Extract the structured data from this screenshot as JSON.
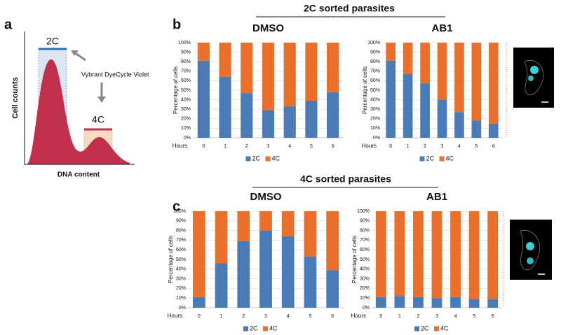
{
  "panel_labels": [
    "a",
    "b",
    "c"
  ],
  "histogram": {
    "y_label": "Cell counts",
    "x_label": "DNA content",
    "peak_labels": [
      "2C",
      "4C"
    ],
    "annotation": "Vybrant DyeCycle Violet"
  },
  "sections": [
    {
      "title": "2C sorted parasites"
    },
    {
      "title": "4C sorted parasites"
    }
  ],
  "chart_data": [
    {
      "type": "bar",
      "stacked": true,
      "title": "DMSO",
      "y_label": "Percentage of cells",
      "x_label": "Hours",
      "categories": [
        "0",
        "1",
        "2",
        "3",
        "4",
        "5",
        "6"
      ],
      "series": [
        {
          "name": "2C",
          "color": "#4a7bb7",
          "values": [
            81,
            64,
            47,
            29,
            33,
            39,
            48
          ]
        },
        {
          "name": "4C",
          "color": "#e8702a",
          "values": [
            19,
            36,
            53,
            71,
            67,
            61,
            52
          ]
        }
      ],
      "ylim": [
        0,
        100
      ],
      "yticks": [
        {
          "value": 0,
          "label": "0%"
        },
        {
          "value": 10,
          "label": "10%"
        },
        {
          "value": 20,
          "label": "20%"
        },
        {
          "value": 30,
          "label": "30%"
        },
        {
          "value": 40,
          "label": "40%"
        },
        {
          "value": 50,
          "label": "50%"
        },
        {
          "value": 60,
          "label": "60%"
        },
        {
          "value": 70,
          "label": "70%"
        },
        {
          "value": 80,
          "label": "80%"
        },
        {
          "value": 90,
          "label": "90%"
        },
        {
          "value": 100,
          "label": "100%"
        }
      ],
      "grid": true
    },
    {
      "type": "bar",
      "stacked": true,
      "title": "AB1",
      "y_label": "Percentage of cells",
      "x_label": "Hours",
      "categories": [
        "0",
        "1",
        "2",
        "3",
        "4",
        "5",
        "6"
      ],
      "series": [
        {
          "name": "2C",
          "color": "#4a7bb7",
          "values": [
            81,
            67,
            57,
            40,
            27,
            18,
            15
          ]
        },
        {
          "name": "4C",
          "color": "#e8702a",
          "values": [
            19,
            33,
            43,
            60,
            73,
            82,
            85
          ]
        }
      ],
      "ylim": [
        0,
        100
      ],
      "yticks": [
        {
          "value": 0,
          "label": "0%"
        },
        {
          "value": 10,
          "label": "10%"
        },
        {
          "value": 20,
          "label": "20%"
        },
        {
          "value": 30,
          "label": "30%"
        },
        {
          "value": 40,
          "label": "40%"
        },
        {
          "value": 50,
          "label": "50%"
        },
        {
          "value": 60,
          "label": "60%"
        },
        {
          "value": 70,
          "label": "70%"
        },
        {
          "value": 80,
          "label": "80%"
        },
        {
          "value": 90,
          "label": "90%"
        },
        {
          "value": 100,
          "label": "100%"
        }
      ],
      "grid": true
    },
    {
      "type": "bar",
      "stacked": true,
      "title": "DMSO",
      "y_label": "Percentage of cells",
      "x_label": "Hours",
      "categories": [
        "0",
        "1",
        "2",
        "3",
        "4",
        "5",
        "6"
      ],
      "series": [
        {
          "name": "2C",
          "color": "#4a7bb7",
          "values": [
            11,
            46,
            69,
            80,
            74,
            53,
            39
          ]
        },
        {
          "name": "4C",
          "color": "#e8702a",
          "values": [
            89,
            54,
            31,
            20,
            26,
            47,
            61
          ]
        }
      ],
      "ylim": [
        0,
        100
      ],
      "yticks": [
        {
          "value": 0,
          "label": "0%"
        },
        {
          "value": 10,
          "label": "10%"
        },
        {
          "value": 20,
          "label": "20%"
        },
        {
          "value": 30,
          "label": "30%"
        },
        {
          "value": 40,
          "label": "40%"
        },
        {
          "value": 50,
          "label": "50%"
        },
        {
          "value": 60,
          "label": "60%"
        },
        {
          "value": 70,
          "label": "70%"
        },
        {
          "value": 80,
          "label": "80%"
        },
        {
          "value": 90,
          "label": "90%"
        },
        {
          "value": 100,
          "label": "100%"
        }
      ],
      "grid": true
    },
    {
      "type": "bar",
      "stacked": true,
      "title": "AB1",
      "y_label": "Percentage of cells",
      "x_label": "Hours",
      "categories": [
        "0",
        "1",
        "2",
        "3",
        "4",
        "5",
        "6"
      ],
      "series": [
        {
          "name": "2C",
          "color": "#4a7bb7",
          "values": [
            11,
            12,
            11,
            10,
            11,
            9,
            9
          ]
        },
        {
          "name": "4C",
          "color": "#e8702a",
          "values": [
            89,
            88,
            89,
            90,
            89,
            91,
            91
          ]
        }
      ],
      "ylim": [
        0,
        100
      ],
      "yticks": [
        {
          "value": 0,
          "label": "0%"
        },
        {
          "value": 10,
          "label": "10%"
        },
        {
          "value": 20,
          "label": "20%"
        },
        {
          "value": 30,
          "label": "30%"
        },
        {
          "value": 40,
          "label": "40%"
        },
        {
          "value": 50,
          "label": "50%"
        },
        {
          "value": 60,
          "label": "60%"
        },
        {
          "value": 70,
          "label": "70%"
        },
        {
          "value": 80,
          "label": "80%"
        },
        {
          "value": 90,
          "label": "90%"
        },
        {
          "value": 100,
          "label": "100%"
        }
      ],
      "grid": true
    }
  ]
}
